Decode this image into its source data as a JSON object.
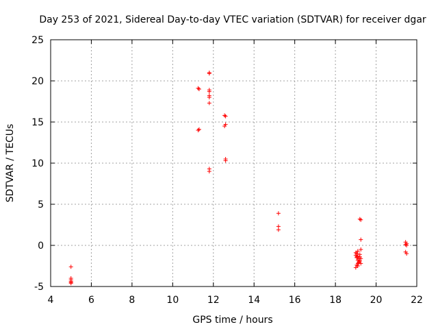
{
  "chart_data": {
    "type": "scatter",
    "title": "Day 253 of 2021, Sidereal Day-to-day VTEC variation (SDTVAR) for receiver dgar",
    "xlabel": "GPS time / hours",
    "ylabel": "SDTVAR / TECUs",
    "xlim": [
      4,
      22
    ],
    "ylim": [
      -5,
      25
    ],
    "xticks": [
      4,
      6,
      8,
      10,
      12,
      14,
      16,
      18,
      20,
      22
    ],
    "yticks": [
      -5,
      0,
      5,
      10,
      15,
      20,
      25
    ],
    "grid": true,
    "marker": "plus",
    "color": "#ff0000",
    "series": [
      {
        "name": "SDTVAR",
        "x": [
          5.0,
          5.0,
          5.0,
          5.0,
          5.0,
          5.0,
          11.25,
          11.3,
          11.25,
          11.3,
          11.8,
          11.8,
          11.8,
          11.8,
          11.8,
          11.8,
          11.8,
          11.8,
          11.8,
          12.55,
          12.6,
          12.6,
          12.55,
          12.6,
          12.6,
          15.2,
          15.2,
          15.2,
          19.0,
          19.0,
          19.05,
          19.05,
          19.1,
          19.1,
          19.15,
          19.15,
          19.1,
          19.05,
          19.0,
          19.1,
          19.15,
          19.2,
          19.2,
          19.2,
          19.25,
          19.25,
          19.25,
          19.2,
          19.25,
          19.25,
          19.1,
          19.05,
          21.45,
          21.45,
          21.5,
          21.5,
          21.45,
          21.5
        ],
        "y": [
          -2.6,
          -4.0,
          -4.2,
          -4.5,
          -4.6,
          -4.4,
          19.1,
          19.0,
          14.0,
          14.1,
          21.0,
          18.9,
          18.2,
          18.0,
          17.3,
          9.3,
          9.0,
          20.9,
          18.7,
          15.8,
          15.7,
          14.7,
          14.5,
          10.5,
          10.3,
          3.9,
          2.3,
          1.9,
          -0.9,
          -1.2,
          -1.0,
          -1.5,
          -1.3,
          -1.8,
          -1.6,
          -2.0,
          -2.2,
          -2.4,
          -2.7,
          -2.5,
          -2.1,
          -1.9,
          -1.4,
          -1.1,
          -0.5,
          0.7,
          3.1,
          3.2,
          -1.6,
          -2.2,
          -0.7,
          -1.4,
          0.4,
          0.1,
          0.0,
          0.2,
          -0.8,
          -1.0
        ]
      }
    ]
  }
}
